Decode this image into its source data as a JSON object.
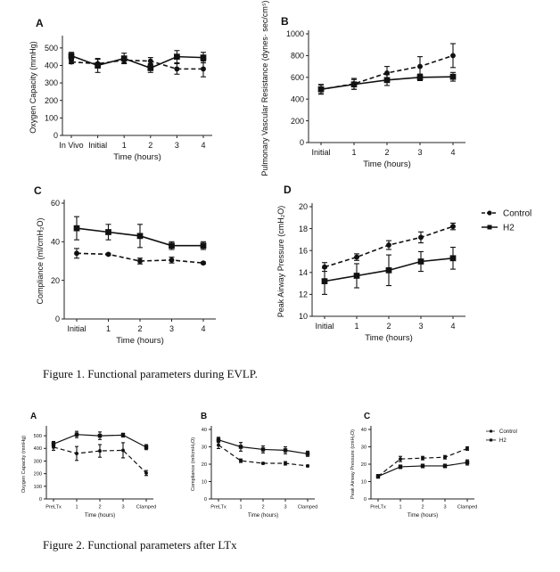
{
  "figures": [
    {
      "caption": "Figure 1. Functional parameters during EVLP."
    },
    {
      "caption": "Figure 2. Functional parameters after LTx"
    }
  ],
  "legend": {
    "control": "Control",
    "h2": "H2"
  },
  "chart_data": [
    {
      "id": "fig1A",
      "panel": "A",
      "type": "line",
      "xlabel": "Time (hours)",
      "ylabel": "Oxygen Capacity (mmHg)",
      "categories": [
        "In Vivo",
        "Initial",
        "1",
        "2",
        "3",
        "4"
      ],
      "yticks": [
        0,
        100,
        200,
        300,
        400,
        500
      ],
      "ylim": [
        0,
        550
      ],
      "series": [
        {
          "name": "Control",
          "style": "dashed",
          "marker": "circle",
          "values": [
            420,
            410,
            430,
            425,
            380,
            380
          ],
          "errors": [
            10,
            25,
            15,
            20,
            30,
            45
          ]
        },
        {
          "name": "H2",
          "style": "solid",
          "marker": "square",
          "values": [
            455,
            400,
            440,
            385,
            450,
            445
          ],
          "errors": [
            20,
            40,
            30,
            25,
            35,
            30
          ]
        }
      ]
    },
    {
      "id": "fig1B",
      "panel": "B",
      "type": "line",
      "xlabel": "Time (hours)",
      "ylabel": "Pulmonary Vascular Resistance (dynes· sec/cm⁵)",
      "categories": [
        "Initial",
        "1",
        "2",
        "3",
        "4"
      ],
      "yticks": [
        0,
        200,
        400,
        600,
        800,
        1000
      ],
      "ylim": [
        0,
        1000
      ],
      "series": [
        {
          "name": "Control",
          "style": "dashed",
          "marker": "circle",
          "values": [
            490,
            540,
            640,
            700,
            800
          ],
          "errors": [
            40,
            50,
            60,
            90,
            110
          ]
        },
        {
          "name": "H2",
          "style": "solid",
          "marker": "square",
          "values": [
            490,
            535,
            575,
            600,
            605
          ],
          "errors": [
            45,
            45,
            50,
            30,
            40
          ]
        }
      ]
    },
    {
      "id": "fig1C",
      "panel": "C",
      "type": "line",
      "xlabel": "Time (hours)",
      "ylabel": "Compliance (ml/cmH₂O)",
      "categories": [
        "Initial",
        "1",
        "2",
        "3",
        "4"
      ],
      "yticks": [
        0,
        20,
        40,
        60
      ],
      "ylim": [
        0,
        60
      ],
      "series": [
        {
          "name": "Control",
          "style": "dashed",
          "marker": "circle",
          "values": [
            34,
            33.5,
            30,
            30.5,
            29
          ],
          "errors": [
            2.5,
            0.5,
            1.5,
            1.5,
            0.5
          ]
        },
        {
          "name": "H2",
          "style": "solid",
          "marker": "square",
          "values": [
            47,
            45,
            43,
            38,
            38
          ],
          "errors": [
            6,
            4,
            6,
            2,
            2
          ]
        }
      ]
    },
    {
      "id": "fig1D",
      "panel": "D",
      "type": "line",
      "xlabel": "Time (hours)",
      "ylabel": "Peak Airway Pressure (cmH₂O)",
      "categories": [
        "Initial",
        "1",
        "2",
        "3",
        "4"
      ],
      "yticks": [
        10,
        12,
        14,
        16,
        18,
        20
      ],
      "ylim": [
        10,
        20
      ],
      "series": [
        {
          "name": "Control",
          "style": "dashed",
          "marker": "circle",
          "values": [
            14.5,
            15.4,
            16.5,
            17.2,
            18.2
          ],
          "errors": [
            0.4,
            0.3,
            0.4,
            0.5,
            0.3
          ]
        },
        {
          "name": "H2",
          "style": "solid",
          "marker": "square",
          "values": [
            13.2,
            13.7,
            14.2,
            15.0,
            15.3
          ],
          "errors": [
            1.2,
            1.1,
            1.4,
            0.9,
            1.0
          ]
        }
      ]
    },
    {
      "id": "fig2A",
      "panel": "A",
      "type": "line",
      "xlabel": "Time (hours)",
      "ylabel": "Oxygen Capacity (mmHg)",
      "categories": [
        "PreLTx",
        "1",
        "2",
        "3",
        "Clamped"
      ],
      "yticks": [
        0,
        100,
        200,
        300,
        400,
        500
      ],
      "ylim": [
        0,
        550
      ],
      "series": [
        {
          "name": "Control",
          "style": "dashed",
          "marker": "circle",
          "values": [
            410,
            360,
            380,
            385,
            205
          ],
          "errors": [
            25,
            55,
            50,
            60,
            20
          ]
        },
        {
          "name": "H2",
          "style": "solid",
          "marker": "square",
          "values": [
            435,
            510,
            500,
            505,
            410
          ],
          "errors": [
            20,
            25,
            30,
            15,
            20
          ]
        }
      ]
    },
    {
      "id": "fig2B",
      "panel": "B",
      "type": "line",
      "xlabel": "Time (hours)",
      "ylabel": "Compliance (ml/cmH₂O)",
      "categories": [
        "PreLTx",
        "1",
        "2",
        "3",
        "Clamped"
      ],
      "yticks": [
        0,
        10,
        20,
        30,
        40
      ],
      "ylim": [
        0,
        40
      ],
      "series": [
        {
          "name": "Control",
          "style": "dashed",
          "marker": "circle",
          "values": [
            31,
            22,
            20.5,
            20.5,
            19
          ],
          "errors": [
            2,
            1,
            0.5,
            1,
            0.5
          ]
        },
        {
          "name": "H2",
          "style": "solid",
          "marker": "square",
          "values": [
            34,
            30,
            28.5,
            28,
            26
          ],
          "errors": [
            1.5,
            2.5,
            2,
            2,
            1.5
          ]
        }
      ]
    },
    {
      "id": "fig2C",
      "panel": "C",
      "type": "line",
      "xlabel": "Time (hours)",
      "ylabel": "Peak Airway Pressure (cmH₂O)",
      "categories": [
        "PreLTx",
        "1",
        "2",
        "3",
        "Clamped"
      ],
      "yticks": [
        0,
        10,
        20,
        30,
        40
      ],
      "ylim": [
        0,
        40
      ],
      "series": [
        {
          "name": "Control",
          "style": "dashed",
          "marker": "circle",
          "values": [
            13,
            23,
            23.5,
            24,
            29
          ],
          "errors": [
            1,
            1.5,
            1,
            1,
            1
          ]
        },
        {
          "name": "H2",
          "style": "solid",
          "marker": "square",
          "values": [
            13,
            18.5,
            19,
            19,
            21
          ],
          "errors": [
            1,
            1,
            1,
            1,
            1.5
          ]
        }
      ]
    }
  ]
}
